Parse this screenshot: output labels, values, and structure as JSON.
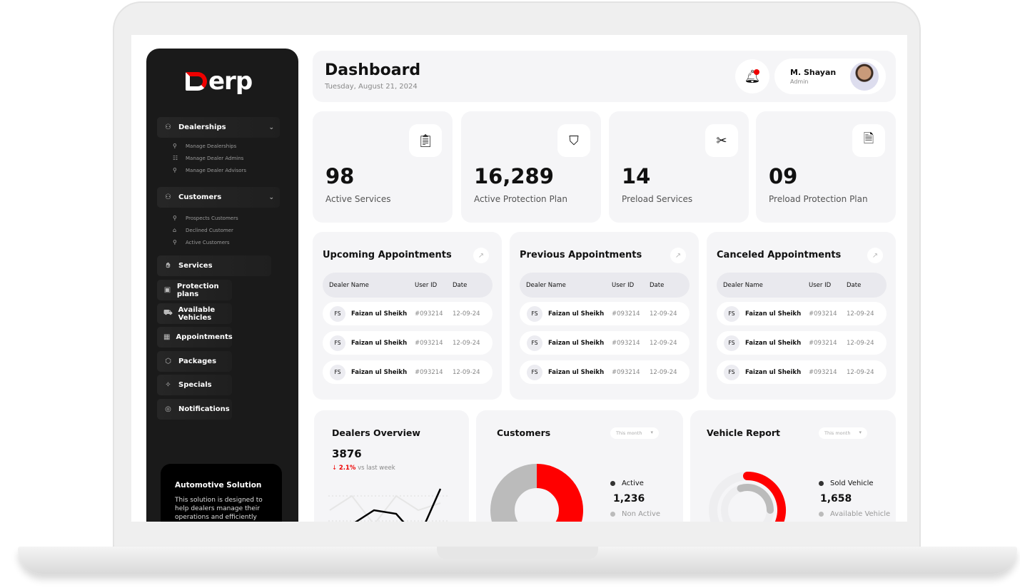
{
  "sidebar": {
    "logo_text": "erp",
    "groups": [
      {
        "label": "Dealerships",
        "icon": "dealership-icon",
        "children": [
          {
            "label": "Manage Dealerships",
            "icon": "manage-dealerships-icon"
          },
          {
            "label": "Manage Dealer Admins",
            "icon": "dealer-admins-icon"
          },
          {
            "label": "Manage Dealer Advisors",
            "icon": "dealer-advisors-icon"
          }
        ]
      },
      {
        "label": "Customers",
        "icon": "customers-icon",
        "children": [
          {
            "label": "Prospects Customers",
            "icon": "prospect-icon"
          },
          {
            "label": "Declined Customer",
            "icon": "declined-icon"
          },
          {
            "label": "Active Customers",
            "icon": "active-customers-icon"
          }
        ]
      }
    ],
    "items": [
      {
        "label": "Services",
        "icon": "services-icon"
      },
      {
        "label": "Protection plans",
        "icon": "protection-icon"
      },
      {
        "label": "Available Vehicles",
        "icon": "car-icon"
      },
      {
        "label": "Appointments",
        "icon": "calendar-icon"
      },
      {
        "label": "Packages",
        "icon": "package-icon"
      },
      {
        "label": "Specials",
        "icon": "specials-icon"
      },
      {
        "label": "Notifications",
        "icon": "notification-icon"
      }
    ],
    "promo": {
      "title": "Automotive Solution",
      "text": "This solution is designed to help dealers manage their operations and efficiently and"
    }
  },
  "header": {
    "title": "Dashboard",
    "date": "Tuesday, August 21, 2024",
    "user_name": "M. Shayan",
    "user_role": "Admin"
  },
  "stats": [
    {
      "value": "98",
      "label": "Active Services",
      "icon": "clipboard-check-icon"
    },
    {
      "value": "16,289",
      "label": "Active Protection Plan",
      "icon": "shield-check-icon"
    },
    {
      "value": "14",
      "label": "Preload Services",
      "icon": "tools-icon"
    },
    {
      "value": "09",
      "label": "Preload Protection Plan",
      "icon": "document-shield-icon"
    }
  ],
  "tables": {
    "columns": [
      "Dealer Name",
      "User ID",
      "Date"
    ],
    "panels": [
      {
        "title": "Upcoming Appointments",
        "rows": [
          {
            "initials": "FS",
            "name": "Faizan ul Sheikh",
            "id": "#093214",
            "date": "12-09-24"
          },
          {
            "initials": "FS",
            "name": "Faizan ul Sheikh",
            "id": "#093214",
            "date": "12-09-24"
          },
          {
            "initials": "FS",
            "name": "Faizan ul Sheikh",
            "id": "#093214",
            "date": "12-09-24"
          }
        ]
      },
      {
        "title": "Previous Appointments",
        "rows": [
          {
            "initials": "FS",
            "name": "Faizan ul Sheikh",
            "id": "#093214",
            "date": "12-09-24"
          },
          {
            "initials": "FS",
            "name": "Faizan ul Sheikh",
            "id": "#093214",
            "date": "12-09-24"
          },
          {
            "initials": "FS",
            "name": "Faizan ul Sheikh",
            "id": "#093214",
            "date": "12-09-24"
          }
        ]
      },
      {
        "title": "Canceled Appointments",
        "rows": [
          {
            "initials": "FS",
            "name": "Faizan ul Sheikh",
            "id": "#093214",
            "date": "12-09-24"
          },
          {
            "initials": "FS",
            "name": "Faizan ul Sheikh",
            "id": "#093214",
            "date": "12-09-24"
          },
          {
            "initials": "FS",
            "name": "Faizan ul Sheikh",
            "id": "#093214",
            "date": "12-09-24"
          }
        ]
      }
    ]
  },
  "dealers": {
    "title": "Dealers Overview",
    "value": "3876",
    "change": "2.1%",
    "change_suffix": "vs last week"
  },
  "customers": {
    "title": "Customers",
    "filter": "This month",
    "legend": [
      {
        "label": "Active",
        "value": "1,236"
      },
      {
        "label": "Non Active"
      }
    ]
  },
  "vehicles": {
    "title": "Vehicle Report",
    "filter": "This month",
    "legend": [
      {
        "label": "Sold Vehicle",
        "value": "1,658"
      },
      {
        "label": "Available Vehicle"
      }
    ]
  },
  "chart_data": [
    {
      "type": "line",
      "series": [
        {
          "values": [
            2,
            4,
            6,
            5.5,
            2,
            9
          ]
        },
        {
          "values": [
            6,
            8,
            4,
            8,
            6,
            7
          ]
        }
      ]
    },
    {
      "type": "pie",
      "categories": [
        "Active",
        "Non Active"
      ],
      "values": [
        50,
        50
      ],
      "colors": [
        "#ff0000",
        "#bbbbbb"
      ]
    },
    {
      "type": "pie",
      "categories": [
        "Sold Vehicle",
        "Available Vehicle"
      ],
      "values": [
        40,
        25
      ],
      "colors": [
        "#ff0000",
        "#bbbbbb"
      ]
    }
  ],
  "colors": {
    "accent": "#ff0000",
    "sidebar": "#1a1a1a",
    "card": "#f5f5f7"
  }
}
